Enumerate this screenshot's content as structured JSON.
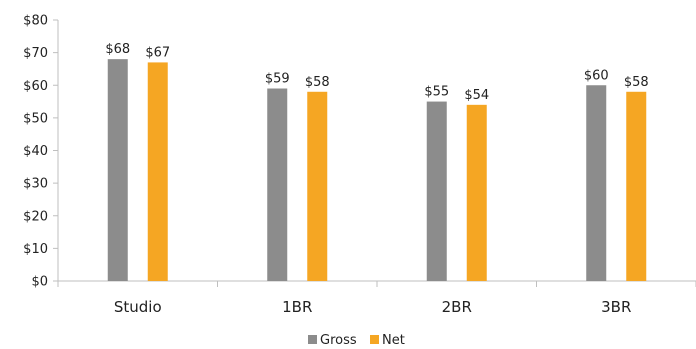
{
  "chart_data": {
    "type": "bar",
    "title": "",
    "xlabel": "",
    "ylabel": "",
    "categories": [
      "Studio",
      "1BR",
      "2BR",
      "3BR"
    ],
    "series": [
      {
        "name": "Gross",
        "values": [
          68,
          59,
          55,
          60
        ],
        "labels": [
          "$68",
          "$59",
          "$55",
          "$60"
        ],
        "color": "#8c8c8c"
      },
      {
        "name": "Net",
        "values": [
          67,
          58,
          54,
          58
        ],
        "labels": [
          "$67",
          "$58",
          "$54",
          "$58"
        ],
        "color": "#f5a623"
      }
    ],
    "ylim": [
      0,
      80
    ],
    "yticks": [
      0,
      10,
      20,
      30,
      40,
      50,
      60,
      70,
      80
    ],
    "ytick_labels": [
      "$0",
      "$10",
      "$20",
      "$30",
      "$40",
      "$50",
      "$60",
      "$70",
      "$80"
    ],
    "grid": false,
    "legend": "bottom-center"
  }
}
